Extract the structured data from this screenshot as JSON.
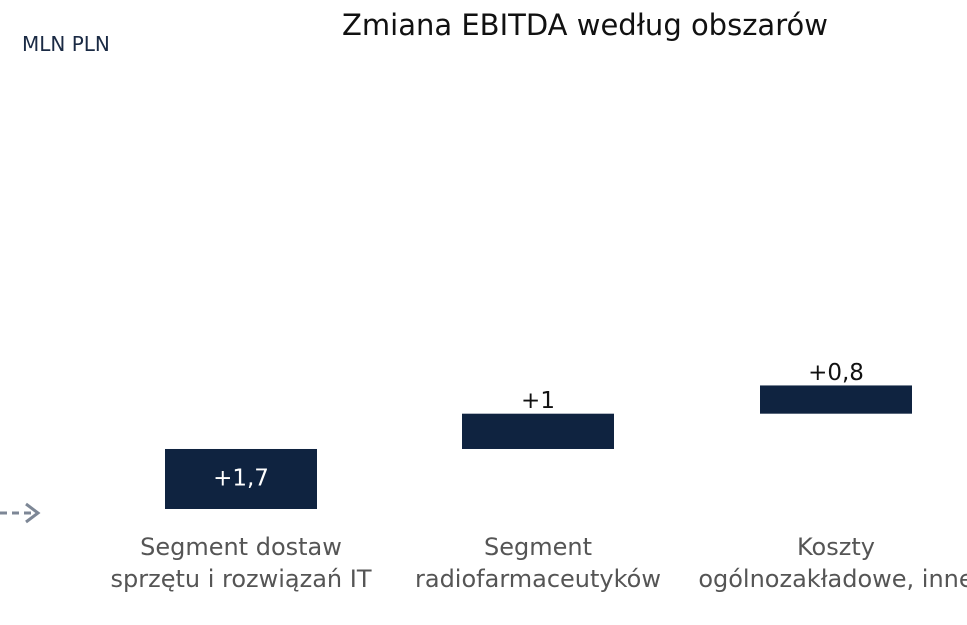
{
  "chart_data": {
    "type": "waterfall",
    "title": "Zmiana EBITDA według obszarów",
    "unit_label": "MLN PLN",
    "categories": [
      "Segment dostaw sprzętu i rozwiązań IT",
      "Segment radiofarmaceutyków",
      "Koszty ogólnozakładowe, inne"
    ],
    "values": [
      1.7,
      1,
      0.8
    ],
    "value_labels": [
      "+1,7",
      "+1",
      "+0,8"
    ],
    "color": "#0f2340"
  }
}
